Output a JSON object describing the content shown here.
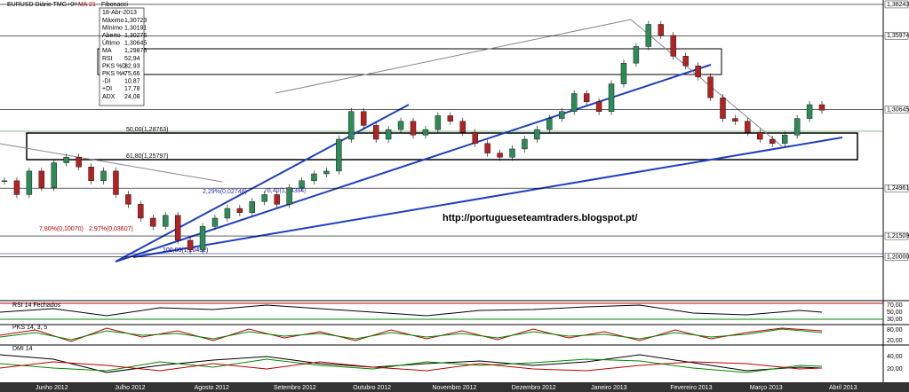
{
  "header": {
    "symbol": "EURUSD Diário TMG+0=",
    "indicator": "MA 21",
    "tool": "Fibonacci"
  },
  "info_box": {
    "date": "18-Abr-2013",
    "rows": [
      [
        "Máximo",
        "1,30723"
      ],
      [
        "Mínimo",
        "1,30191"
      ],
      [
        "Aberto",
        "1,30276"
      ],
      [
        "Último",
        "1,30645"
      ],
      [
        "MA",
        "1,29876"
      ],
      [
        "RSI",
        "52,94"
      ],
      [
        "PKS %D",
        "82,93"
      ],
      [
        "PKS %K",
        "75,66"
      ],
      [
        "-DI",
        "10,87"
      ],
      [
        "+DI",
        "17,78"
      ],
      [
        "ADX",
        "24,08"
      ]
    ]
  },
  "fib_labels": [
    "50,00(1,28763)",
    "61,80(1,25797)",
    "76,40(1,24384)",
    "100,00(1,20432)",
    "7,80%(0,10070)",
    "2,97%(0,03607)",
    "2,29%(0,02748)"
  ],
  "watermark": "http://portugueseteamtraders.blogspot.pt/",
  "panels": {
    "rsi": {
      "label": "RSI 14 Fechados",
      "ticks": [
        "70,00",
        "50,00",
        "30,00"
      ]
    },
    "stoch": {
      "label": "PKS 14, 3, 5",
      "ticks": [
        "80,00",
        "20,00"
      ]
    },
    "dmi": {
      "label": "DMI 14",
      "ticks": [
        "40,00",
        "20,00"
      ]
    }
  },
  "chart_data": {
    "type": "candlestick",
    "ylim": [
      1.1985,
      1.3856
    ],
    "yticks": [
      {
        "value": 1.38243,
        "label": "1,38243"
      },
      {
        "value": 1.35974,
        "label": "1,35974"
      },
      {
        "value": 1.30645,
        "label": "1,30645"
      },
      {
        "value": 1.24961,
        "label": "1,24961"
      },
      {
        "value": 1.21509,
        "label": "1,21509"
      },
      {
        "value": 1.2,
        "label": "1,20000"
      }
    ],
    "months": [
      "Junho 2012",
      "Julho 2012",
      "Agosto 2012",
      "Setembro 2012",
      "Outubro 2012",
      "Novembro 2012",
      "Dezembro 2012",
      "Janeiro 2013",
      "Fevereiro 2013",
      "Março 2013",
      "Abril 2013"
    ],
    "up_color": "#2e8b57",
    "down_color": "#b22222",
    "values": [
      1.255,
      1.245,
      1.262,
      1.25,
      1.268,
      1.272,
      1.265,
      1.255,
      1.262,
      1.245,
      1.238,
      1.228,
      1.222,
      1.23,
      1.212,
      1.205,
      1.222,
      1.228,
      1.235,
      1.232,
      1.24,
      1.245,
      1.238,
      1.25,
      1.255,
      1.26,
      1.262,
      1.285,
      1.305,
      1.295,
      1.285,
      1.292,
      1.298,
      1.288,
      1.292,
      1.302,
      1.298,
      1.29,
      1.282,
      1.275,
      1.272,
      1.278,
      1.285,
      1.292,
      1.3,
      1.305,
      1.318,
      1.312,
      1.305,
      1.325,
      1.34,
      1.352,
      1.368,
      1.36,
      1.345,
      1.338,
      1.33,
      1.315,
      1.3,
      1.298,
      1.29,
      1.285,
      1.282,
      1.288,
      1.3,
      1.31,
      1.306
    ]
  }
}
